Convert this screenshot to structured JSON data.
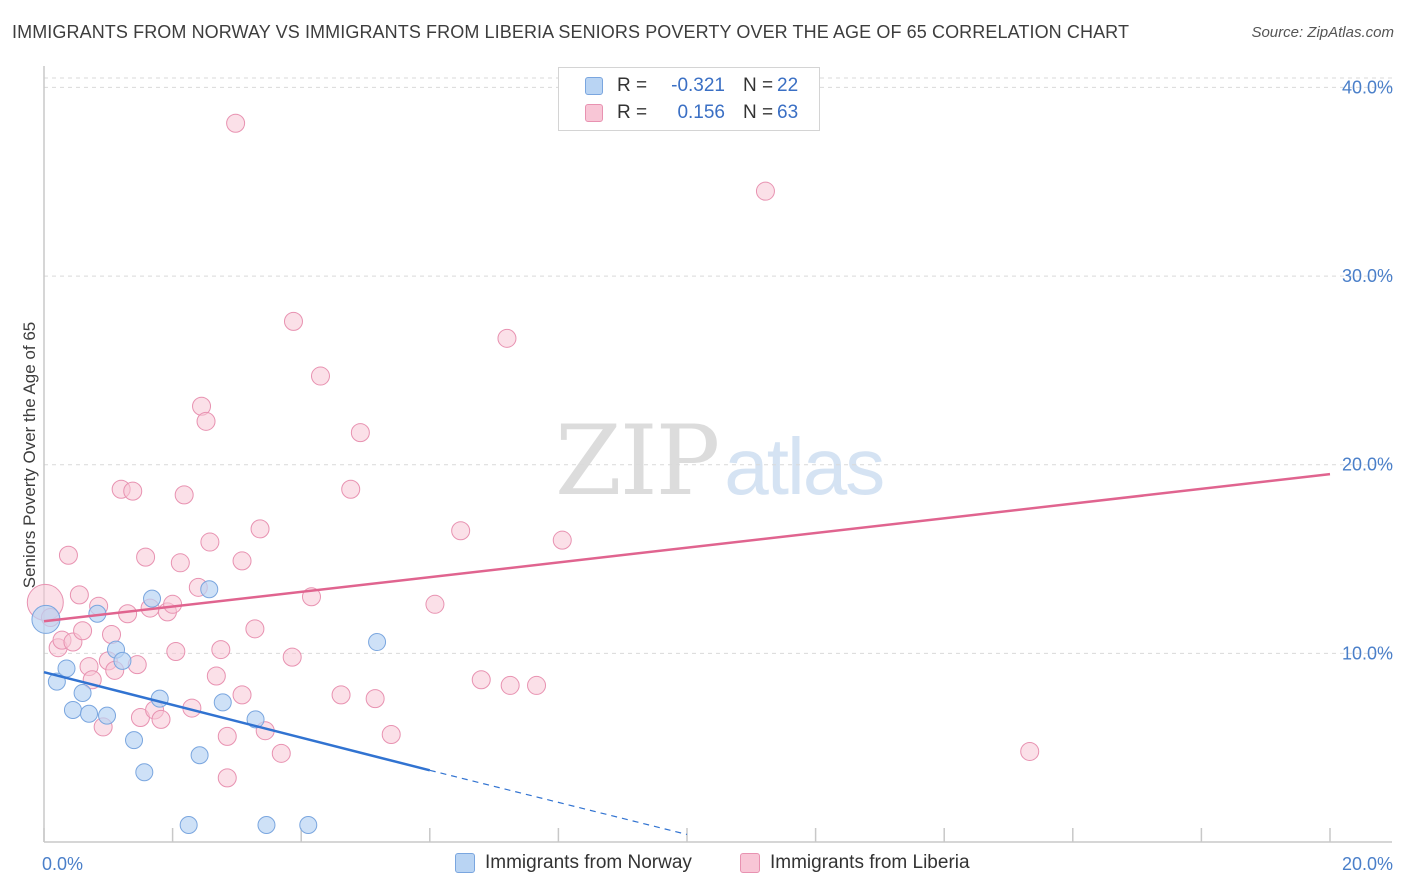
{
  "title": "IMMIGRANTS FROM NORWAY VS IMMIGRANTS FROM LIBERIA SENIORS POVERTY OVER THE AGE OF 65 CORRELATION CHART",
  "source": "Source: ZipAtlas.com",
  "watermark": {
    "zip": "ZIP",
    "atlas": "atlas"
  },
  "legend": {
    "norway": {
      "r_label": "R =",
      "r_value": "-0.321",
      "n_label": "N =",
      "n_value": "22"
    },
    "liberia": {
      "r_label": "R =",
      "r_value": "0.156",
      "n_label": "N =",
      "n_value": "63"
    }
  },
  "colors": {
    "norway_fill": "#b9d4f3",
    "norway_stroke": "#7aa6df",
    "norway_line": "#3173d1",
    "liberia_fill": "#f8c6d6",
    "liberia_stroke": "#e892b1",
    "liberia_line": "#e0648f",
    "tick_color": "#4a7fc9",
    "grid": "#d9d9d9"
  },
  "chart_data": {
    "type": "scatter",
    "title": "IMMIGRANTS FROM NORWAY VS IMMIGRANTS FROM LIBERIA SENIORS POVERTY OVER THE AGE OF 65 CORRELATION CHART",
    "xlabel": "",
    "ylabel": "Seniors Poverty Over the Age of 65",
    "xlim": [
      0,
      20
    ],
    "ylim": [
      0,
      40.5
    ],
    "x_ticks": [
      {
        "v": 0,
        "label": "0.0%"
      },
      {
        "v": 20,
        "label": "20.0%"
      }
    ],
    "y_ticks": [
      {
        "v": 10,
        "label": "10.0%"
      },
      {
        "v": 20,
        "label": "20.0%"
      },
      {
        "v": 30,
        "label": "30.0%"
      },
      {
        "v": 40,
        "label": "40.0%"
      }
    ],
    "series": [
      {
        "name": "Immigrants from Norway",
        "r": -0.321,
        "n": 22,
        "trend": {
          "solid": [
            [
              0,
              9.0
            ],
            [
              6.0,
              3.8
            ]
          ],
          "dashed": [
            [
              6.0,
              3.8
            ],
            [
              10.0,
              0.4
            ]
          ]
        },
        "points": [
          [
            0.03,
            11.8
          ],
          [
            0.2,
            8.5
          ],
          [
            0.35,
            9.2
          ],
          [
            0.45,
            7.0
          ],
          [
            0.6,
            7.9
          ],
          [
            0.7,
            6.8
          ],
          [
            0.83,
            12.1
          ],
          [
            0.98,
            6.7
          ],
          [
            1.12,
            10.2
          ],
          [
            1.22,
            9.6
          ],
          [
            1.4,
            5.4
          ],
          [
            1.56,
            3.7
          ],
          [
            1.68,
            12.9
          ],
          [
            1.8,
            7.6
          ],
          [
            2.25,
            0.9
          ],
          [
            2.42,
            4.6
          ],
          [
            2.57,
            13.4
          ],
          [
            2.78,
            7.4
          ],
          [
            3.29,
            6.5
          ],
          [
            3.46,
            0.9
          ],
          [
            4.11,
            0.9
          ],
          [
            5.18,
            10.6
          ]
        ]
      },
      {
        "name": "Immigrants from Liberia",
        "r": 0.156,
        "n": 63,
        "trend": {
          "solid": [
            [
              0,
              11.7
            ],
            [
              20,
              19.5
            ]
          ]
        },
        "points": [
          [
            0.02,
            12.7
          ],
          [
            0.1,
            11.9
          ],
          [
            0.22,
            10.3
          ],
          [
            0.28,
            10.7
          ],
          [
            0.38,
            15.2
          ],
          [
            0.45,
            10.6
          ],
          [
            0.55,
            13.1
          ],
          [
            0.6,
            11.2
          ],
          [
            0.7,
            9.3
          ],
          [
            0.75,
            8.6
          ],
          [
            0.85,
            12.5
          ],
          [
            0.92,
            6.1
          ],
          [
            1.0,
            9.6
          ],
          [
            1.05,
            11.0
          ],
          [
            1.1,
            9.1
          ],
          [
            1.2,
            18.7
          ],
          [
            1.3,
            12.1
          ],
          [
            1.38,
            18.6
          ],
          [
            1.45,
            9.4
          ],
          [
            1.5,
            6.6
          ],
          [
            1.58,
            15.1
          ],
          [
            1.65,
            12.4
          ],
          [
            1.72,
            7.0
          ],
          [
            1.82,
            6.5
          ],
          [
            1.92,
            12.2
          ],
          [
            2.0,
            12.6
          ],
          [
            2.05,
            10.1
          ],
          [
            2.12,
            14.8
          ],
          [
            2.18,
            18.4
          ],
          [
            2.3,
            7.1
          ],
          [
            2.4,
            13.5
          ],
          [
            2.45,
            23.1
          ],
          [
            2.52,
            22.3
          ],
          [
            2.58,
            15.9
          ],
          [
            2.68,
            8.8
          ],
          [
            2.75,
            10.2
          ],
          [
            2.85,
            5.6
          ],
          [
            2.85,
            3.4
          ],
          [
            2.98,
            38.1
          ],
          [
            3.08,
            7.8
          ],
          [
            3.08,
            14.9
          ],
          [
            3.28,
            11.3
          ],
          [
            3.36,
            16.6
          ],
          [
            3.44,
            5.9
          ],
          [
            3.69,
            4.7
          ],
          [
            3.86,
            9.8
          ],
          [
            3.88,
            27.6
          ],
          [
            4.16,
            13.0
          ],
          [
            4.3,
            24.7
          ],
          [
            4.62,
            7.8
          ],
          [
            4.77,
            18.7
          ],
          [
            4.92,
            21.7
          ],
          [
            5.15,
            7.6
          ],
          [
            5.4,
            5.7
          ],
          [
            6.08,
            12.6
          ],
          [
            6.48,
            16.5
          ],
          [
            6.8,
            8.6
          ],
          [
            7.2,
            26.7
          ],
          [
            7.25,
            8.3
          ],
          [
            7.66,
            8.3
          ],
          [
            8.06,
            16.0
          ],
          [
            11.22,
            34.5
          ],
          [
            15.33,
            4.8
          ]
        ]
      }
    ]
  },
  "bottom_legend": {
    "norway": "Immigrants from Norway",
    "liberia": "Immigrants from Liberia"
  }
}
